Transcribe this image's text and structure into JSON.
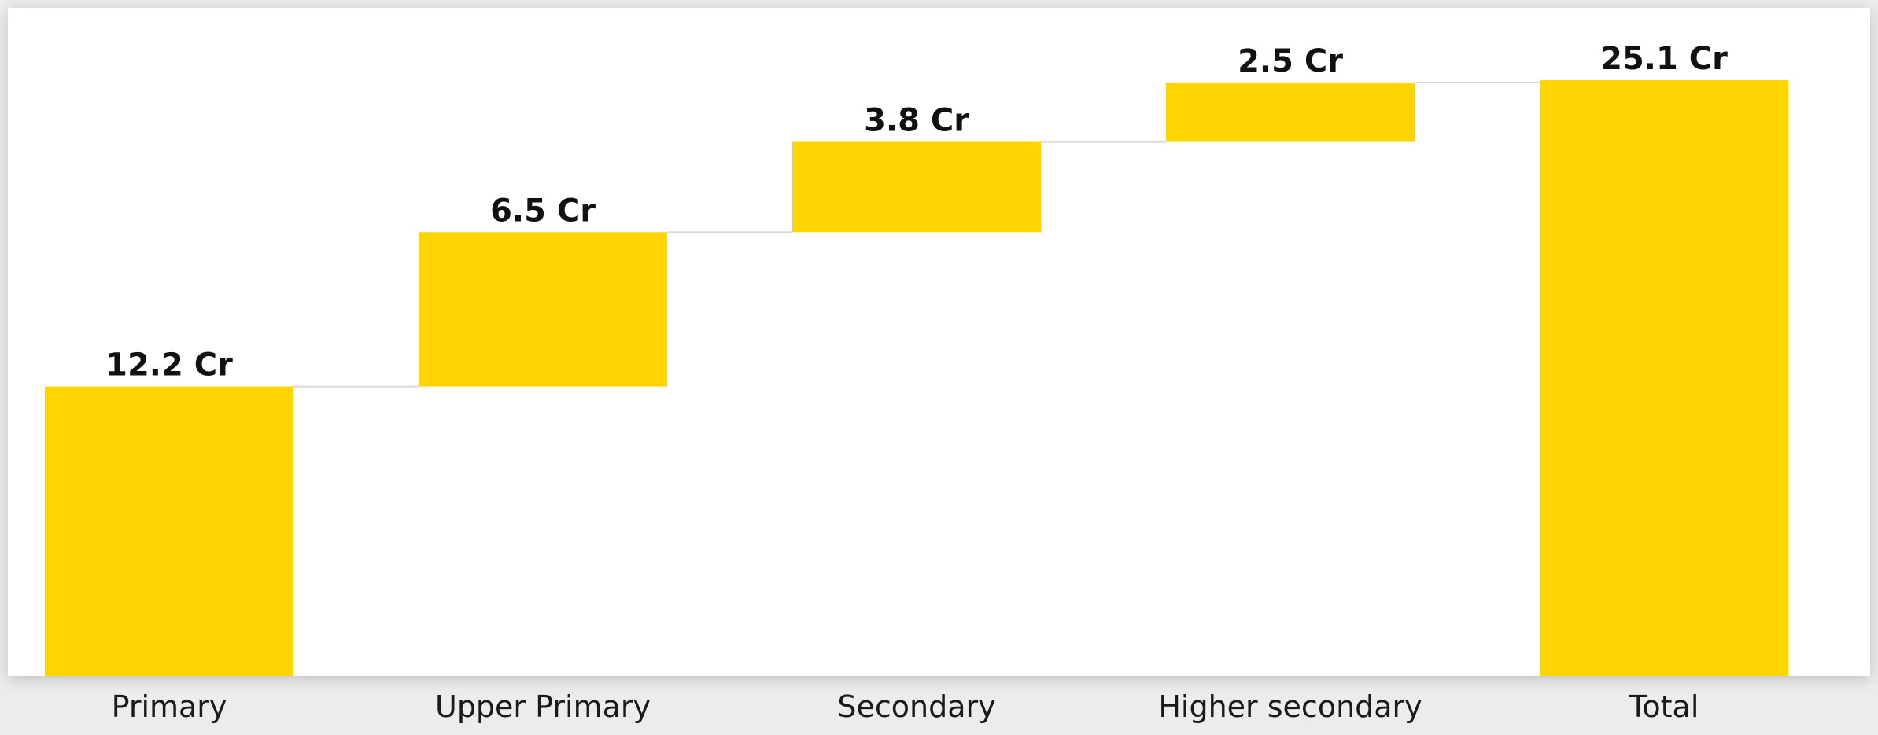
{
  "chart_data": {
    "type": "bar",
    "subtype": "waterfall",
    "categories": [
      "Primary",
      "Upper Primary",
      "Secondary",
      "Higher secondary",
      "Total"
    ],
    "values": [
      12.2,
      6.5,
      3.8,
      2.5,
      25.1
    ],
    "labels": [
      "12.2 Cr",
      "6.5 Cr",
      "3.8 Cr",
      "2.5 Cr",
      "25.1 Cr"
    ],
    "is_total": [
      false,
      false,
      false,
      false,
      true
    ],
    "unit": "Cr",
    "title": "",
    "xlabel": "",
    "ylabel": "",
    "ylim": [
      0,
      25.1
    ],
    "grid": false,
    "legend": "none",
    "colors": {
      "bar": "#FFD400",
      "connector": "#d9d9d9",
      "background": "#ffffff"
    }
  }
}
